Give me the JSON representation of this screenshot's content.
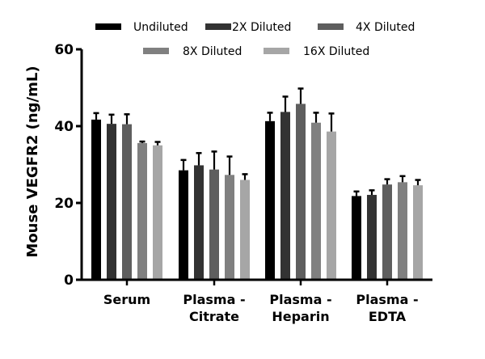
{
  "chart_data": {
    "type": "bar",
    "title": "",
    "xlabel": "",
    "ylabel": "Mouse VEGFR2 (ng/mL)",
    "ylim": [
      0,
      60
    ],
    "yticks": [
      "0",
      "20",
      "40",
      "60"
    ],
    "grid": false,
    "legend_position": "top",
    "categories": [
      [
        "Serum"
      ],
      [
        "Plasma -",
        "Citrate"
      ],
      [
        "Plasma -",
        "Heparin"
      ],
      [
        "Plasma -",
        "EDTA"
      ]
    ],
    "series": [
      {
        "name": "Undiluted",
        "color": "#000000",
        "values": [
          41.7,
          28.5,
          41.3,
          21.8
        ],
        "error": [
          1.9,
          2.9,
          2.4,
          1.4
        ]
      },
      {
        "name": "2X Diluted",
        "color": "#333333",
        "values": [
          40.6,
          29.8,
          43.7,
          22.1
        ],
        "error": [
          2.6,
          3.4,
          4.2,
          1.4
        ]
      },
      {
        "name": "4X Diluted",
        "color": "#5e5e5e",
        "values": [
          40.5,
          28.7,
          45.8,
          24.8
        ],
        "error": [
          2.8,
          4.9,
          4.2,
          1.6
        ]
      },
      {
        "name": "8X Diluted",
        "color": "#808080",
        "values": [
          35.6,
          27.3,
          40.9,
          25.4
        ],
        "error": [
          0.6,
          5.0,
          2.8,
          1.8
        ]
      },
      {
        "name": "16X Diluted",
        "color": "#a6a6a6",
        "values": [
          35.0,
          26.0,
          38.6,
          24.6
        ],
        "error": [
          1.1,
          1.7,
          4.9,
          1.6
        ]
      }
    ]
  }
}
